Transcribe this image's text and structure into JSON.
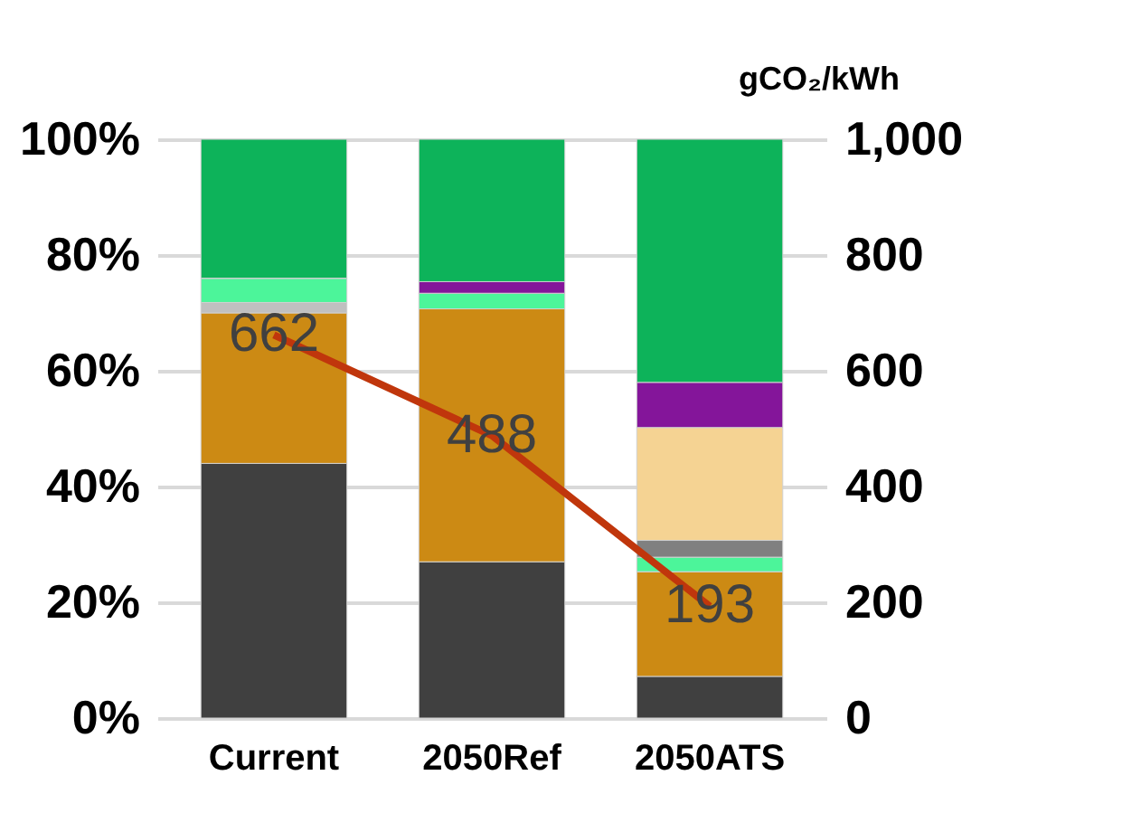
{
  "chart_data": {
    "type": "bar",
    "stacked": true,
    "categories": [
      "Current",
      "2050Ref",
      "2050ATS"
    ],
    "series": [
      {
        "color": "#404040",
        "values": [
          44,
          27,
          7.2
        ]
      },
      {
        "color": "#cc8a14",
        "values": [
          26,
          43.7,
          18.1
        ]
      },
      {
        "color": "#c0c0c0",
        "values": [
          1.8,
          0,
          0
        ]
      },
      {
        "color": "#4cf59a",
        "values": [
          4.2,
          2.7,
          2.5
        ]
      },
      {
        "color": "#808080",
        "values": [
          0,
          0,
          2.9
        ]
      },
      {
        "color": "#f5d393",
        "values": [
          0,
          0,
          19.5
        ]
      },
      {
        "color": "#84159a",
        "values": [
          0,
          2,
          7.8
        ]
      },
      {
        "color": "#0db35a",
        "values": [
          24,
          24.6,
          42
        ]
      },
      {
        "type": "line",
        "axis": "y2",
        "color": "#c0360c",
        "values": [
          662,
          488,
          193
        ],
        "value_labels": [
          "662",
          "488",
          "193"
        ]
      }
    ],
    "ylim": [
      0,
      100
    ],
    "yticks": [
      {
        "value": 0,
        "label": "0%"
      },
      {
        "value": 20,
        "label": "20%"
      },
      {
        "value": 40,
        "label": "40%"
      },
      {
        "value": 60,
        "label": "60%"
      },
      {
        "value": 80,
        "label": "80%"
      },
      {
        "value": 100,
        "label": "100%"
      }
    ],
    "y2lim": [
      0,
      1000
    ],
    "y2ticks": [
      0,
      200,
      400,
      600,
      800,
      {
        "value": 1000,
        "label": "1,000"
      }
    ],
    "y2label": "gCO₂/kWh",
    "grid": "y"
  }
}
